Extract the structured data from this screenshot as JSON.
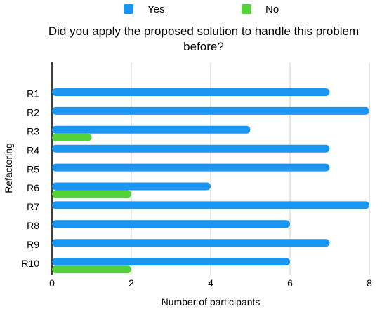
{
  "chart_data": {
    "type": "bar",
    "orientation": "horizontal",
    "title": "Did you apply the proposed solution to handle this problem before?",
    "xlabel": "Number of participants",
    "ylabel": "Refactoring",
    "categories": [
      "R1",
      "R2",
      "R3",
      "R4",
      "R5",
      "R6",
      "R7",
      "R8",
      "R9",
      "R10"
    ],
    "series": [
      {
        "name": "Yes",
        "color": "#1a96f0",
        "values": [
          7,
          8,
          5,
          7,
          7,
          4,
          8,
          6,
          7,
          6
        ]
      },
      {
        "name": "No",
        "color": "#55d13a",
        "values": [
          0,
          0,
          1,
          0,
          0,
          2,
          0,
          0,
          0,
          2
        ]
      }
    ],
    "xlim": [
      0,
      8
    ],
    "xticks": [
      0,
      2,
      4,
      6,
      8
    ],
    "grid": "vertical",
    "legend_position": "top"
  }
}
